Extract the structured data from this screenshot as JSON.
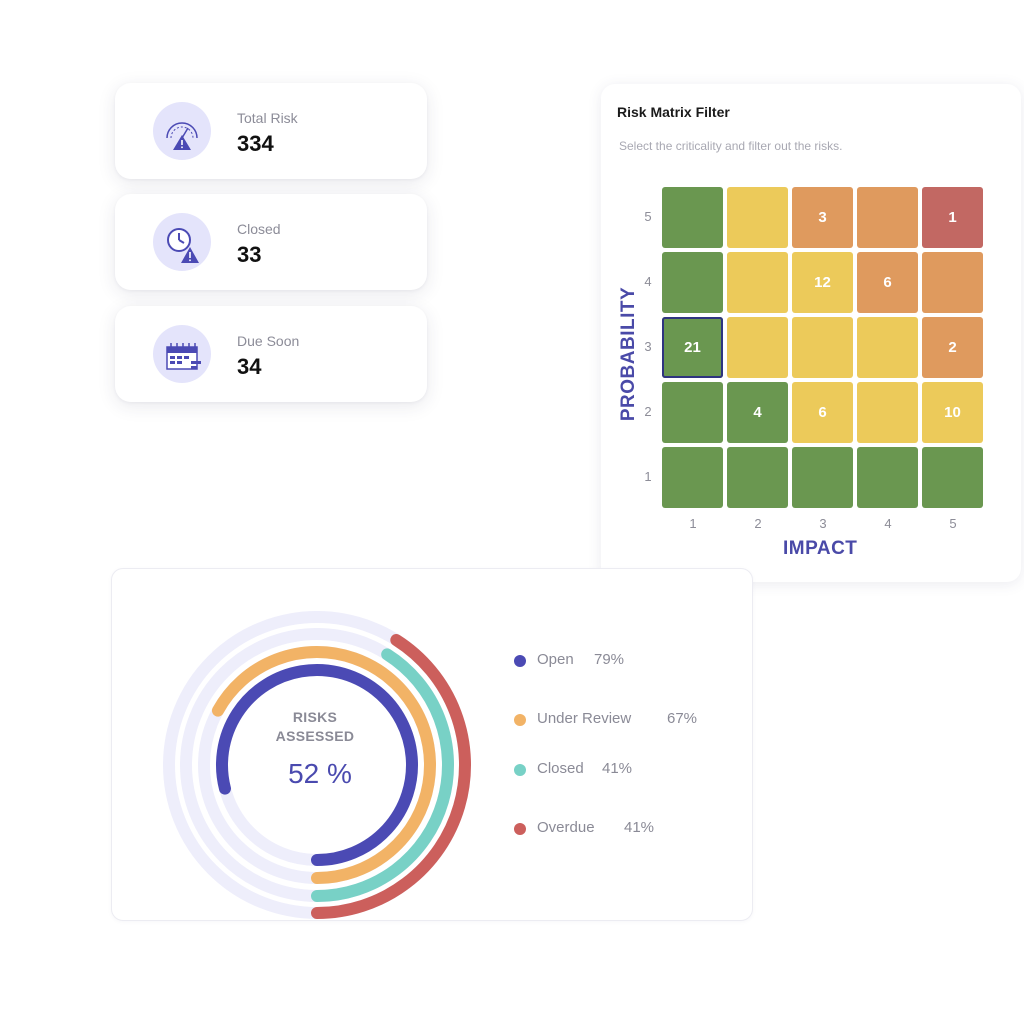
{
  "stats": [
    {
      "label": "Total Risk",
      "value": "334",
      "icon": "risk-gauge-icon"
    },
    {
      "label": "Closed",
      "value": "33",
      "icon": "clock-warning-icon"
    },
    {
      "label": "Due Soon",
      "value": "34",
      "icon": "calendar-icon"
    }
  ],
  "matrix": {
    "title": "Risk Matrix Filter",
    "subtitle": "Select the criticality and filter out the risks.",
    "x_axis_label": "IMPACT",
    "y_axis_label": "PROBABILITY",
    "x_ticks": [
      "1",
      "2",
      "3",
      "4",
      "5"
    ],
    "y_ticks": [
      "5",
      "4",
      "3",
      "2",
      "1"
    ],
    "colors": {
      "green": "#6a9750",
      "yellow": "#ecca5a",
      "orange": "#df9a5e",
      "red": "#c26863"
    },
    "rows": [
      {
        "probability": "5",
        "cells": [
          {
            "impact": "1",
            "color": "green",
            "count": ""
          },
          {
            "impact": "2",
            "color": "yellow",
            "count": ""
          },
          {
            "impact": "3",
            "color": "orange",
            "count": "3"
          },
          {
            "impact": "4",
            "color": "orange",
            "count": ""
          },
          {
            "impact": "5",
            "color": "red",
            "count": "1"
          }
        ]
      },
      {
        "probability": "4",
        "cells": [
          {
            "impact": "1",
            "color": "green",
            "count": ""
          },
          {
            "impact": "2",
            "color": "yellow",
            "count": ""
          },
          {
            "impact": "3",
            "color": "yellow",
            "count": "12"
          },
          {
            "impact": "4",
            "color": "orange",
            "count": "6"
          },
          {
            "impact": "5",
            "color": "orange",
            "count": ""
          }
        ]
      },
      {
        "probability": "3",
        "cells": [
          {
            "impact": "1",
            "color": "green",
            "count": "21",
            "selected": true
          },
          {
            "impact": "2",
            "color": "yellow",
            "count": ""
          },
          {
            "impact": "3",
            "color": "yellow",
            "count": ""
          },
          {
            "impact": "4",
            "color": "yellow",
            "count": ""
          },
          {
            "impact": "5",
            "color": "orange",
            "count": "2"
          }
        ]
      },
      {
        "probability": "2",
        "cells": [
          {
            "impact": "1",
            "color": "green",
            "count": ""
          },
          {
            "impact": "2",
            "color": "green",
            "count": "4"
          },
          {
            "impact": "3",
            "color": "yellow",
            "count": "6"
          },
          {
            "impact": "4",
            "color": "yellow",
            "count": ""
          },
          {
            "impact": "5",
            "color": "yellow",
            "count": "10"
          }
        ]
      },
      {
        "probability": "1",
        "cells": [
          {
            "impact": "1",
            "color": "green",
            "count": ""
          },
          {
            "impact": "2",
            "color": "green",
            "count": ""
          },
          {
            "impact": "3",
            "color": "green",
            "count": ""
          },
          {
            "impact": "4",
            "color": "green",
            "count": ""
          },
          {
            "impact": "5",
            "color": "green",
            "count": ""
          }
        ]
      }
    ]
  },
  "donut": {
    "center_title_line1": "RISKS",
    "center_title_line2": "ASSESSED",
    "center_value": "52 %",
    "track_color": "#eeeefb",
    "series": [
      {
        "name": "Open",
        "value_text": "79%",
        "color": "#4b4ab4"
      },
      {
        "name": "Under Review",
        "value_text": "67%",
        "color": "#f2b366"
      },
      {
        "name": "Closed",
        "value_text": "41%",
        "color": "#78d1c6"
      },
      {
        "name": "Overdue",
        "value_text": "41%",
        "color": "#cc5f5c"
      }
    ]
  }
}
